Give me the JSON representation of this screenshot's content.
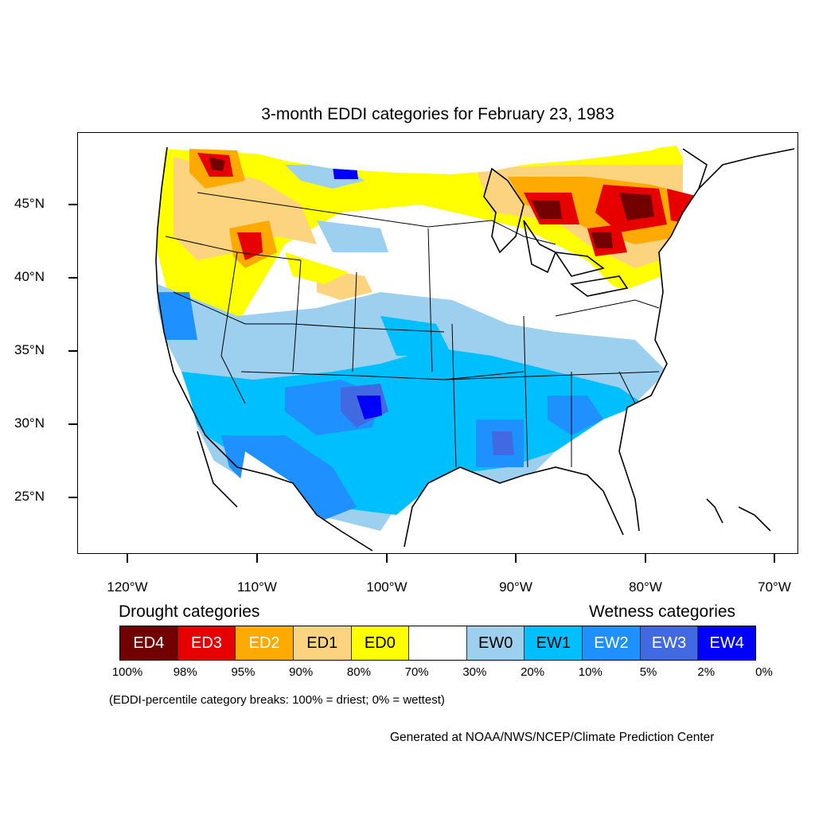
{
  "title": "3-month EDDI categories for February 23, 1983",
  "y_axis_labels": [
    "45°N",
    "40°N",
    "35°N",
    "30°N",
    "25°N"
  ],
  "x_axis_labels": [
    "120°W",
    "110°W",
    "100°W",
    "90°W",
    "80°W",
    "70°W"
  ],
  "legend": {
    "drought_heading": "Drought categories",
    "wetness_heading": "Wetness categories",
    "categories": [
      {
        "label": "ED4",
        "color": "#730000",
        "text_color": "#ffffff"
      },
      {
        "label": "ED3",
        "color": "#e60000",
        "text_color": "#ffffff"
      },
      {
        "label": "ED2",
        "color": "#ffaa00",
        "text_color": "#ffffff"
      },
      {
        "label": "ED1",
        "color": "#fcd37f",
        "text_color": "#000000"
      },
      {
        "label": "ED0",
        "color": "#ffff00",
        "text_color": "#000000"
      },
      {
        "label": "",
        "color": "#ffffff",
        "text_color": "#000000"
      },
      {
        "label": "EW0",
        "color": "#9dcfee",
        "text_color": "#000000"
      },
      {
        "label": "EW1",
        "color": "#00bfff",
        "text_color": "#000000"
      },
      {
        "label": "EW2",
        "color": "#1e90ff",
        "text_color": "#ffffff"
      },
      {
        "label": "EW3",
        "color": "#4169e1",
        "text_color": "#ffffff"
      },
      {
        "label": "EW4",
        "color": "#0000ff",
        "text_color": "#ffffff"
      }
    ],
    "breaks": [
      "100%",
      "98%",
      "95%",
      "90%",
      "80%",
      "70%",
      "30%",
      "20%",
      "10%",
      "5%",
      "2%",
      "0%"
    ]
  },
  "note": "(EDDI-percentile category breaks: 100% = driest; 0% = wettest)",
  "credit": "Generated at NOAA/NWS/NCEP/Climate Prediction Center"
}
